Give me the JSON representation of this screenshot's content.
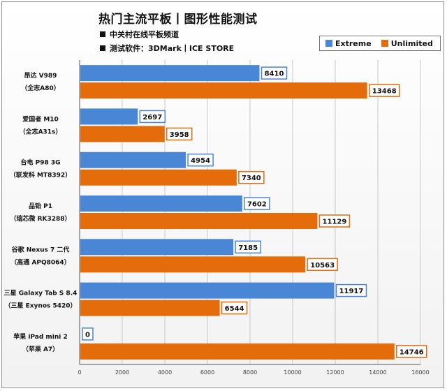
{
  "chart_data": {
    "type": "bar",
    "orientation": "horizontal",
    "title": "热门主流平板丨图形性能测试",
    "notes": [
      "中关村在线平板频道",
      "测试软件：3DMark丨ICE STORE"
    ],
    "categories": [
      [
        "昂达 V989",
        "（全志A80）"
      ],
      [
        "爱国者 M10",
        "（全志A31s）"
      ],
      [
        "台电 P98 3G",
        "（联发科 MT8392）"
      ],
      [
        "品铂 P1",
        "（瑞芯微 RK3288）"
      ],
      [
        "谷歌 Nexus 7 二代",
        "（高通 APQ8064）"
      ],
      [
        "三星 Galaxy Tab S 8.4",
        "（三星 Exynos 5420）"
      ],
      [
        "苹果 iPad mini 2",
        "（苹果 A7）"
      ]
    ],
    "series": [
      {
        "name": "Extreme",
        "color": "#4a86d6",
        "label_border": "#4a86d6",
        "values": [
          8410,
          2697,
          4954,
          7602,
          7185,
          11917,
          0
        ]
      },
      {
        "name": "Unlimited",
        "color": "#e46c0a",
        "label_border": "#e46c0a",
        "values": [
          13468,
          3958,
          7340,
          11129,
          10563,
          6544,
          14746
        ]
      }
    ],
    "xlim": [
      0,
      16000
    ],
    "xticks": [
      0,
      2000,
      4000,
      6000,
      8000,
      10000,
      12000,
      14000,
      16000
    ],
    "grid": "vertical",
    "legend_position": "top-right"
  }
}
